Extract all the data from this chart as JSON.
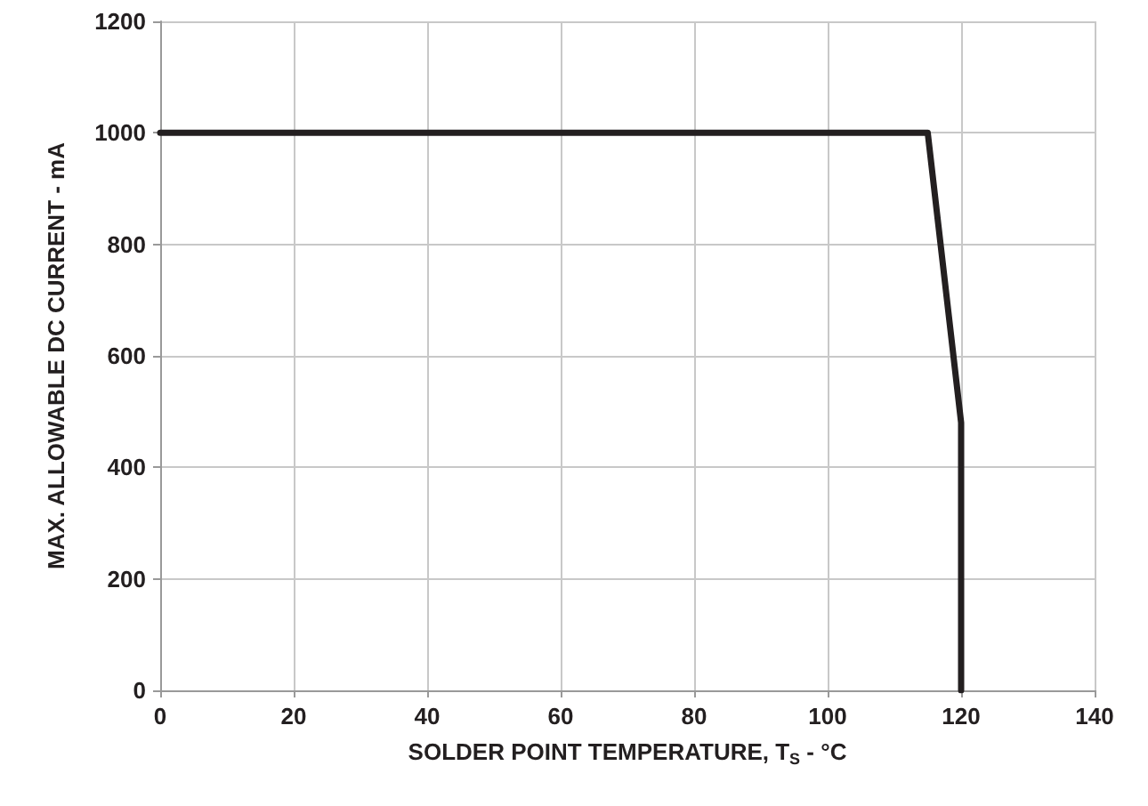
{
  "chart_data": {
    "type": "line",
    "xlabel": "SOLDER POINT TEMPERATURE, T$_{S}$ - °C",
    "ylabel": "MAX. ALLOWABLE DC CURRENT - mA",
    "x": [
      0,
      115,
      120,
      120
    ],
    "series": [
      {
        "color": "#231f20",
        "values": [
          1000,
          1000,
          480,
          0
        ]
      }
    ],
    "xlim": [
      0,
      140
    ],
    "xticks": [
      0,
      20,
      40,
      60,
      80,
      100,
      120,
      140
    ],
    "ylim": [
      0,
      1200
    ],
    "yticks": [
      0,
      200,
      400,
      600,
      800,
      1000,
      1200
    ],
    "grid": true,
    "marker": "none",
    "line_style": "solid"
  }
}
